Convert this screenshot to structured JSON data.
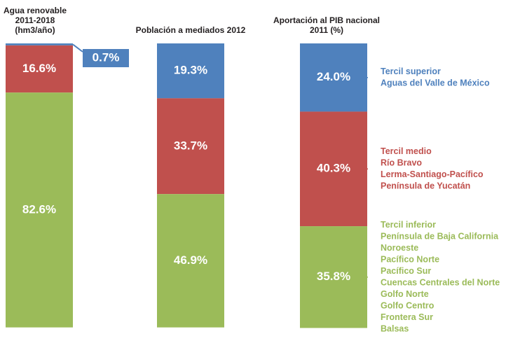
{
  "chart_data": {
    "type": "stacked_bar_100",
    "categories": [
      [
        "Agua renovable",
        "2011-2018",
        "(hm3/año)"
      ],
      [
        "Población a mediados 2012"
      ],
      [
        "Aportación al PIB nacional",
        "2011 (%)"
      ]
    ],
    "ylim": [
      0,
      100
    ],
    "series": [
      {
        "name": "Tercil superior",
        "color": "#4f81bd",
        "values": [
          0.7,
          19.3,
          24.0
        ],
        "value_labels": [
          "0.7%",
          "19.3%",
          "24.0%"
        ],
        "regions": [
          "Aguas del Valle de México"
        ]
      },
      {
        "name": "Tercil medio",
        "color": "#c0504d",
        "values": [
          16.6,
          33.7,
          40.3
        ],
        "value_labels": [
          "16.6%",
          "33.7%",
          "40.3%"
        ],
        "regions": [
          "Río Bravo",
          "Lerma-Santiago-Pacífico",
          "Península de Yucatán"
        ]
      },
      {
        "name": "Tercil inferior",
        "color": "#9bbb59",
        "values": [
          82.6,
          46.9,
          35.8
        ],
        "value_labels": [
          "82.6%",
          "46.9%",
          "35.8%"
        ],
        "regions": [
          "Península de Baja California",
          "Noroeste",
          "Pacífico Norte",
          "Pacífico Sur",
          "Cuencas Centrales del Norte",
          "Golfo Norte",
          "Golfo Centro",
          "Frontera Sur",
          "Balsas"
        ]
      }
    ]
  }
}
